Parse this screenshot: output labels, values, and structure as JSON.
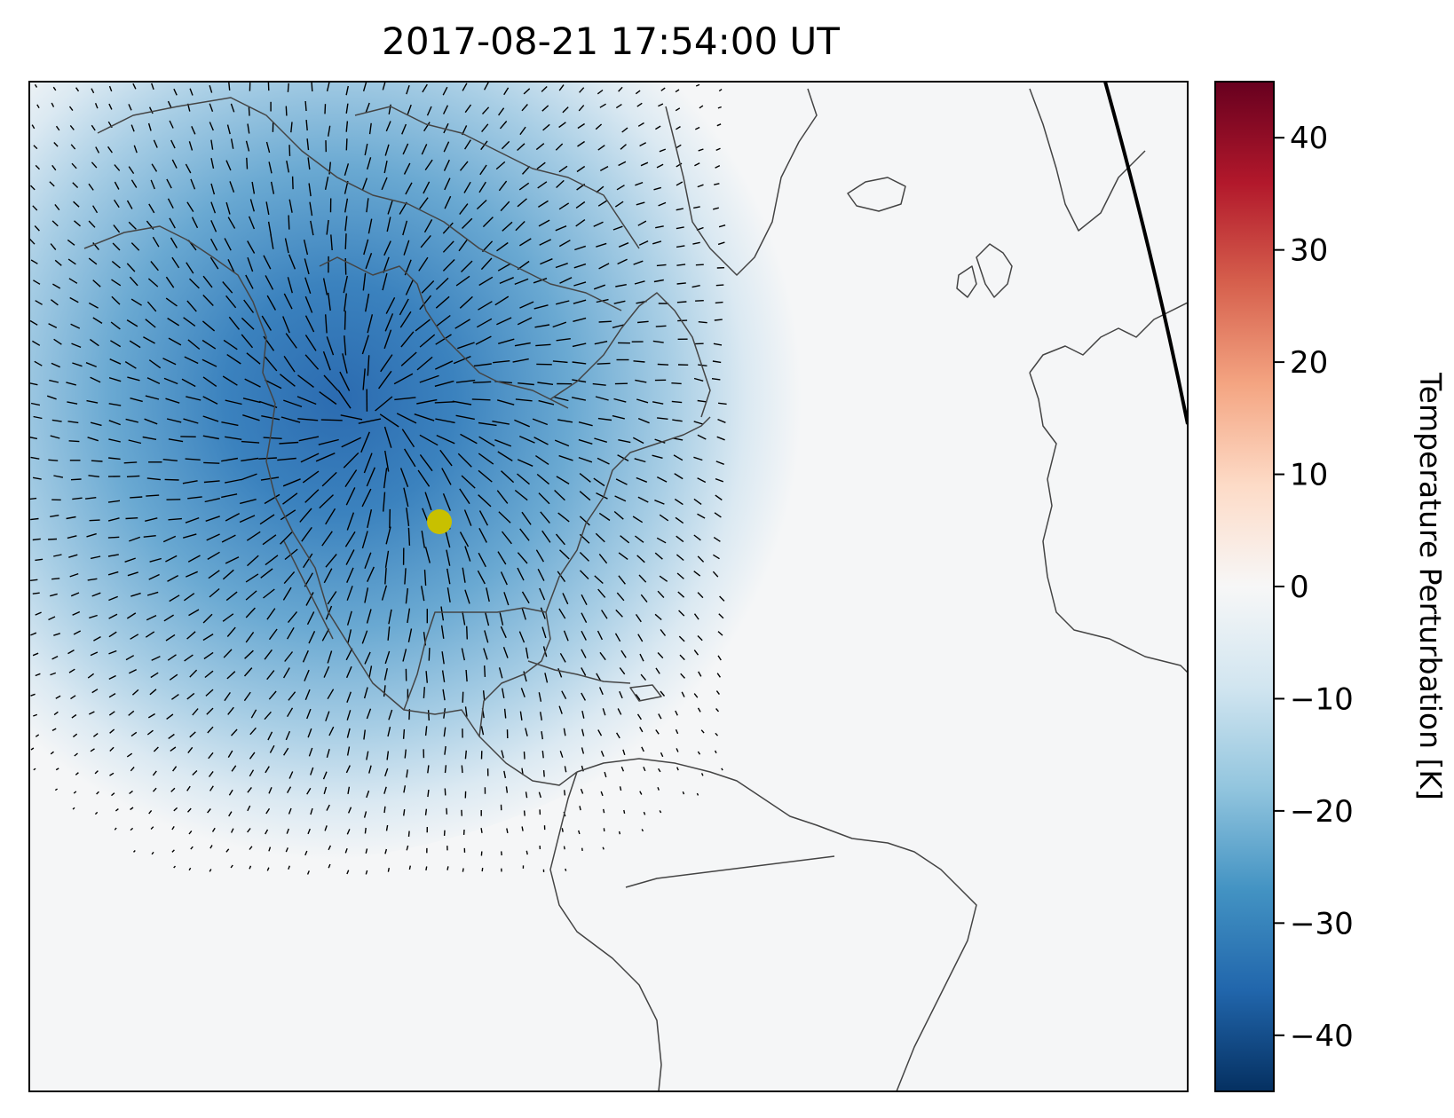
{
  "title": "2017-08-21 17:54:00 UT",
  "colorbar": {
    "label": "Temperature Perturbation [K]",
    "min": -45,
    "max": 45,
    "ticks": [
      "40",
      "30",
      "20",
      "10",
      "0",
      "−10",
      "−20",
      "−30",
      "−40"
    ],
    "tick_values": [
      40,
      30,
      20,
      10,
      0,
      -10,
      -20,
      -30,
      -40
    ],
    "colormap": "RdBu_r",
    "colors": [
      "#053061",
      "#2166ac",
      "#4393c3",
      "#92c5de",
      "#d1e5f0",
      "#f7f7f7",
      "#fddbc7",
      "#f4a582",
      "#d6604d",
      "#b2182b",
      "#67001f"
    ]
  },
  "map": {
    "region": "North Atlantic / Americas",
    "coastline_color": "#444444",
    "terminator_color": "#000000",
    "marker_color": "#c8c000"
  },
  "chart_data": {
    "type": "heatmap",
    "title": "2017-08-21 17:54:00 UT",
    "colorbar_label": "Temperature Perturbation [K]",
    "value_range": [
      -45,
      45
    ],
    "min_perturbation_approx": -40,
    "overlays": [
      "wind vectors",
      "coastlines",
      "terminator line",
      "eclipse center marker"
    ]
  }
}
